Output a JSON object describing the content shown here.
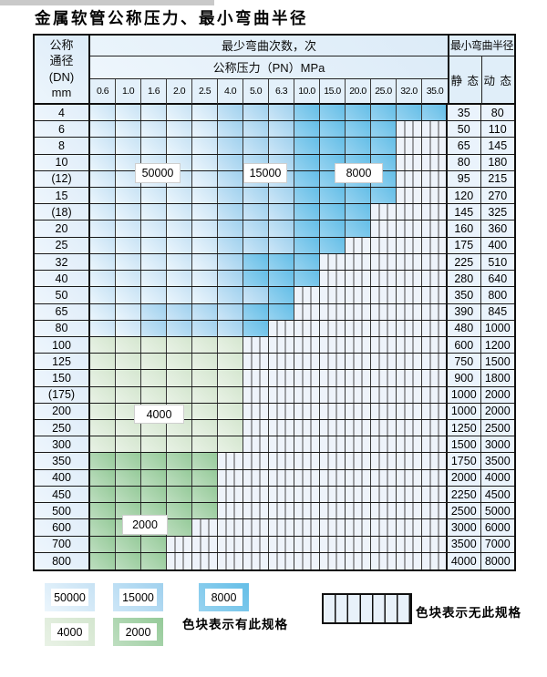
{
  "title": "金属软管公称压力、最小弯曲半径",
  "table": {
    "corner_lines": [
      "公称",
      "通径",
      "(DN)",
      "mm"
    ],
    "bend_cycles_header": "最少弯曲次数，次",
    "pressure_header": "公称压力（PN）MPa",
    "radius_header": "最小弯曲半径",
    "static_header": "静 态",
    "dynamic_header": "动 态",
    "pressure_columns": [
      "0.6",
      "1.0",
      "1.6",
      "2.0",
      "2.5",
      "4.0",
      "5.0",
      "6.3",
      "10.0",
      "15.0",
      "20.0",
      "25.0",
      "32.0",
      "35.0"
    ],
    "rows": [
      {
        "dn": "4",
        "st": "35",
        "dy": "80",
        "bands": [
          [
            "b1",
            5
          ],
          [
            "b2",
            3
          ],
          [
            "b3",
            6
          ]
        ]
      },
      {
        "dn": "6",
        "st": "50",
        "dy": "110",
        "bands": [
          [
            "b1",
            5
          ],
          [
            "b2",
            3
          ],
          [
            "b3",
            4
          ]
        ]
      },
      {
        "dn": "8",
        "st": "65",
        "dy": "145",
        "bands": [
          [
            "b1",
            5
          ],
          [
            "b2",
            3
          ],
          [
            "b3",
            4
          ]
        ]
      },
      {
        "dn": "10",
        "st": "80",
        "dy": "180",
        "bands": [
          [
            "b1",
            5
          ],
          [
            "b2",
            3
          ],
          [
            "b3",
            4
          ]
        ]
      },
      {
        "dn": "(12)",
        "st": "95",
        "dy": "215",
        "bands": [
          [
            "b1",
            5
          ],
          [
            "b2",
            3
          ],
          [
            "b3",
            4
          ]
        ]
      },
      {
        "dn": "15",
        "st": "120",
        "dy": "270",
        "bands": [
          [
            "b1",
            5
          ],
          [
            "b2",
            3
          ],
          [
            "b3",
            4
          ]
        ]
      },
      {
        "dn": "(18)",
        "st": "145",
        "dy": "325",
        "bands": [
          [
            "b1",
            5
          ],
          [
            "b2",
            3
          ],
          [
            "b3",
            3
          ]
        ]
      },
      {
        "dn": "20",
        "st": "160",
        "dy": "360",
        "bands": [
          [
            "b1",
            5
          ],
          [
            "b2",
            3
          ],
          [
            "b3",
            3
          ]
        ]
      },
      {
        "dn": "25",
        "st": "175",
        "dy": "400",
        "bands": [
          [
            "b1",
            5
          ],
          [
            "b2",
            3
          ],
          [
            "b3",
            2
          ]
        ]
      },
      {
        "dn": "32",
        "st": "225",
        "dy": "510",
        "bands": [
          [
            "b1",
            5
          ],
          [
            "b2",
            1
          ],
          [
            "b3",
            3
          ]
        ]
      },
      {
        "dn": "40",
        "st": "280",
        "dy": "640",
        "bands": [
          [
            "b1",
            5
          ],
          [
            "b2",
            1
          ],
          [
            "b3",
            3
          ]
        ]
      },
      {
        "dn": "50",
        "st": "350",
        "dy": "800",
        "bands": [
          [
            "b1",
            5
          ],
          [
            "b2",
            2
          ],
          [
            "b3",
            1
          ]
        ]
      },
      {
        "dn": "65",
        "st": "390",
        "dy": "845",
        "bands": [
          [
            "b1",
            2
          ],
          [
            "b2",
            4
          ],
          [
            "b3",
            2
          ]
        ]
      },
      {
        "dn": "80",
        "st": "480",
        "dy": "1000",
        "bands": [
          [
            "b1",
            2
          ],
          [
            "b2",
            4
          ],
          [
            "b3",
            1
          ]
        ]
      },
      {
        "dn": "100",
        "st": "600",
        "dy": "1200",
        "bands": [
          [
            "g1",
            6
          ]
        ]
      },
      {
        "dn": "125",
        "st": "750",
        "dy": "1500",
        "bands": [
          [
            "g1",
            6
          ]
        ]
      },
      {
        "dn": "150",
        "st": "900",
        "dy": "1800",
        "bands": [
          [
            "g1",
            6
          ]
        ]
      },
      {
        "dn": "(175)",
        "st": "1000",
        "dy": "2000",
        "bands": [
          [
            "g1",
            6
          ]
        ]
      },
      {
        "dn": "200",
        "st": "1000",
        "dy": "2000",
        "bands": [
          [
            "g1",
            6
          ]
        ]
      },
      {
        "dn": "250",
        "st": "1250",
        "dy": "2500",
        "bands": [
          [
            "g1",
            6
          ]
        ]
      },
      {
        "dn": "300",
        "st": "1500",
        "dy": "3000",
        "bands": [
          [
            "g1",
            6
          ]
        ]
      },
      {
        "dn": "350",
        "st": "1750",
        "dy": "3500",
        "bands": [
          [
            "g2",
            5
          ]
        ]
      },
      {
        "dn": "400",
        "st": "2000",
        "dy": "4000",
        "bands": [
          [
            "g2",
            5
          ]
        ]
      },
      {
        "dn": "450",
        "st": "2250",
        "dy": "4500",
        "bands": [
          [
            "g2",
            5
          ]
        ]
      },
      {
        "dn": "500",
        "st": "2500",
        "dy": "5000",
        "bands": [
          [
            "g2",
            5
          ]
        ]
      },
      {
        "dn": "600",
        "st": "3000",
        "dy": "6000",
        "bands": [
          [
            "g2",
            4
          ]
        ]
      },
      {
        "dn": "700",
        "st": "3500",
        "dy": "7000",
        "bands": [
          [
            "g2",
            3
          ]
        ]
      },
      {
        "dn": "800",
        "st": "4000",
        "dy": "8000",
        "bands": [
          [
            "g2",
            3
          ]
        ]
      }
    ]
  },
  "overlay_labels": [
    {
      "id": "label-50000",
      "text": "50000"
    },
    {
      "id": "label-15000",
      "text": "15000"
    },
    {
      "id": "label-8000",
      "text": "8000"
    },
    {
      "id": "label-4000",
      "text": "4000"
    },
    {
      "id": "label-2000",
      "text": "2000"
    }
  ],
  "palette": {
    "b1": {
      "base": "#c7e2f4",
      "light": "#ecf6fd"
    },
    "b2": {
      "base": "#a0d1ee",
      "light": "#cde6f7"
    },
    "b3": {
      "base": "#64bee7",
      "light": "#98d3f0"
    },
    "g1": {
      "base": "#d4e6cf",
      "light": "#e9f2e6"
    },
    "g2": {
      "base": "#95ca99",
      "light": "#bedec0"
    }
  },
  "legend": {
    "items": [
      {
        "key": "b1",
        "label": "50000"
      },
      {
        "key": "b2",
        "label": "15000"
      },
      {
        "key": "b3",
        "label": "8000"
      },
      {
        "key": "g1",
        "label": "4000"
      },
      {
        "key": "g2",
        "label": "2000"
      }
    ],
    "has_spec_text": "色块表示有此规格",
    "no_spec_text": "色块表示无此规格"
  }
}
